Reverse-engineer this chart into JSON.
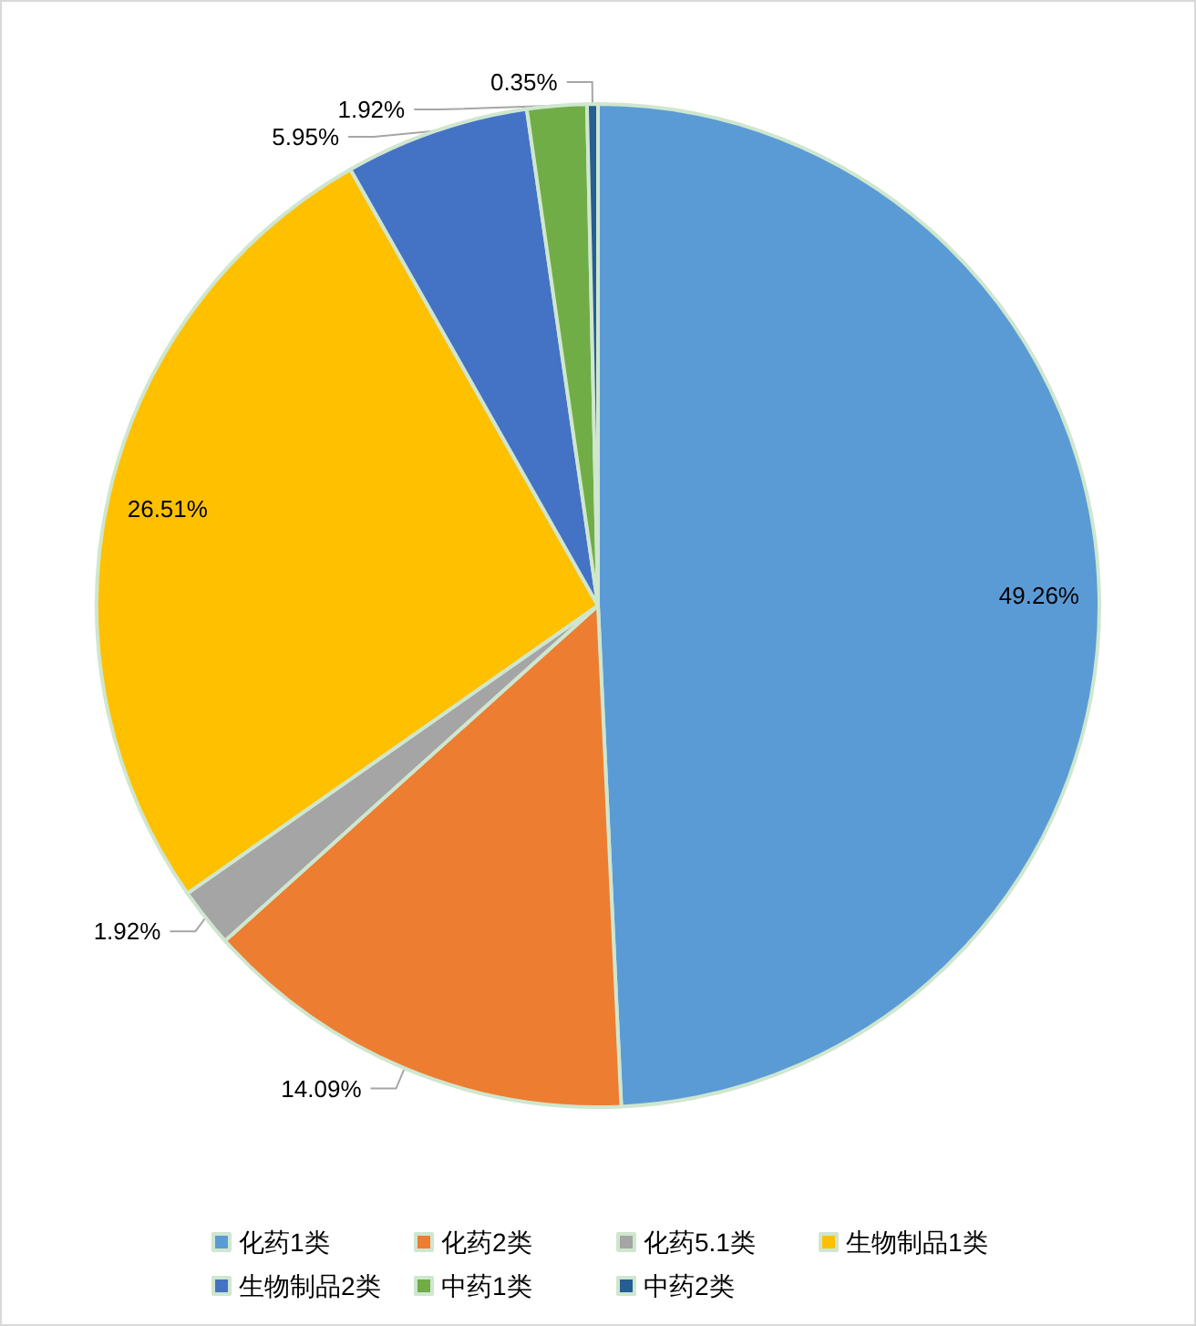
{
  "chart_data": {
    "type": "pie",
    "categories": [
      "化药1类",
      "化药2类",
      "化药5.1类",
      "生物制品1类",
      "生物制品2类",
      "中药1类",
      "中药2类"
    ],
    "values": [
      49.26,
      14.09,
      1.92,
      26.51,
      5.95,
      1.92,
      0.35
    ],
    "colors": [
      "#5b9bd5",
      "#ed7d31",
      "#a5a5a5",
      "#ffc000",
      "#4472c4",
      "#70ad47",
      "#255e91"
    ],
    "value_labels": [
      "49.26%",
      "14.09%",
      "1.92%",
      "26.51%",
      "5.95%",
      "1.92%",
      "0.35%"
    ],
    "legend": "bottom"
  }
}
